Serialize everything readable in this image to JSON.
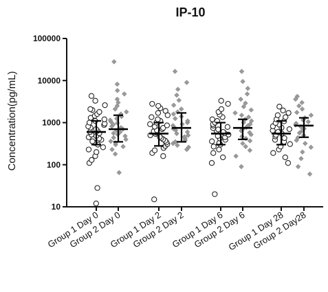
{
  "chart_data": {
    "type": "scatter",
    "title": "IP-10",
    "ylabel": "Concentration(pg/mL)",
    "xlabel": "",
    "y_scale": "log",
    "ylim": [
      10,
      100000
    ],
    "y_ticks": [
      10,
      100,
      1000,
      10000,
      100000
    ],
    "y_tick_labels": [
      "10",
      "100",
      "1000",
      "10000",
      "100000"
    ],
    "grid": false,
    "legend": "none",
    "categories": [
      "Group 1 Day 0",
      "Group 2 Day 0",
      "Group 1 Day 2",
      "Group 2 Day 2",
      "Group 1 Day 6",
      "Group 2 Day 6",
      "Group 1 Day 28",
      "Group 2 Day28"
    ],
    "groups": [
      {
        "category": "Group 1 Day 0",
        "marker": "open-circle",
        "median": 600,
        "q1": 300,
        "q3": 1100,
        "values": [
          12,
          28,
          110,
          130,
          160,
          200,
          230,
          260,
          300,
          330,
          360,
          390,
          420,
          450,
          480,
          520,
          560,
          600,
          640,
          700,
          760,
          820,
          880,
          950,
          1000,
          1100,
          1200,
          1300,
          1450,
          1600,
          1800,
          2000,
          2100,
          2600,
          3300,
          4300
        ]
      },
      {
        "category": "Group 2 Day 0",
        "marker": "grey-diamond",
        "median": 700,
        "q1": 350,
        "q3": 1500,
        "values": [
          65,
          180,
          230,
          270,
          300,
          330,
          360,
          400,
          440,
          480,
          520,
          560,
          600,
          650,
          700,
          760,
          820,
          900,
          980,
          1050,
          1150,
          1250,
          1400,
          1600,
          1800,
          2100,
          2500,
          3000,
          3600,
          4800,
          5800,
          8200,
          28000
        ]
      },
      {
        "category": "Group 1 Day 2",
        "marker": "open-circle",
        "median": 550,
        "q1": 280,
        "q3": 1000,
        "values": [
          15,
          160,
          190,
          220,
          250,
          280,
          310,
          340,
          370,
          400,
          430,
          460,
          500,
          540,
          580,
          620,
          660,
          700,
          750,
          800,
          860,
          920,
          1000,
          1100,
          1200,
          1350,
          1500,
          1700,
          1900,
          2200,
          2500,
          2800
        ]
      },
      {
        "category": "Group 2 Day 2",
        "marker": "grey-diamond",
        "median": 750,
        "q1": 350,
        "q3": 1700,
        "values": [
          230,
          260,
          290,
          320,
          350,
          380,
          420,
          460,
          500,
          550,
          600,
          660,
          720,
          780,
          850,
          920,
          1000,
          1100,
          1250,
          1400,
          1600,
          1800,
          2100,
          2600,
          3400,
          4500,
          6200,
          9000,
          16500
        ]
      },
      {
        "category": "Group 1 Day 6",
        "marker": "open-circle",
        "median": 550,
        "q1": 300,
        "q3": 1000,
        "values": [
          20,
          110,
          150,
          190,
          230,
          270,
          300,
          330,
          360,
          390,
          420,
          450,
          480,
          520,
          560,
          600,
          640,
          690,
          740,
          790,
          850,
          920,
          1000,
          1100,
          1200,
          1350,
          1550,
          1800,
          2100,
          2800,
          3300
        ]
      },
      {
        "category": "Group 2 Day 6",
        "marker": "grey-diamond",
        "median": 750,
        "q1": 400,
        "q3": 1200,
        "values": [
          90,
          160,
          220,
          270,
          320,
          370,
          420,
          470,
          520,
          580,
          640,
          700,
          770,
          840,
          920,
          1000,
          1100,
          1200,
          1350,
          1500,
          1700,
          2000,
          2400,
          2900,
          3600,
          4800,
          6500,
          9500,
          16500
        ]
      },
      {
        "category": "Group 1 Day 28",
        "marker": "open-circle",
        "median": 550,
        "q1": 300,
        "q3": 1100,
        "values": [
          110,
          150,
          190,
          230,
          270,
          310,
          350,
          390,
          430,
          470,
          510,
          550,
          600,
          650,
          700,
          760,
          820,
          900,
          980,
          1080,
          1200,
          1350,
          1500,
          1700,
          1950,
          2400
        ]
      },
      {
        "category": "Group 2 Day28",
        "marker": "grey-diamond",
        "median": 850,
        "q1": 450,
        "q3": 1300,
        "values": [
          60,
          90,
          140,
          200,
          260,
          320,
          380,
          440,
          500,
          570,
          640,
          720,
          800,
          880,
          960,
          1050,
          1150,
          1300,
          1500,
          1750,
          2100,
          2500,
          3000,
          3600,
          4200
        ]
      }
    ]
  },
  "colors": {
    "axis": "#111111",
    "open_marker_stroke": "#222222",
    "filled_marker": "#9a9a9a",
    "error_bar": "#000000"
  }
}
